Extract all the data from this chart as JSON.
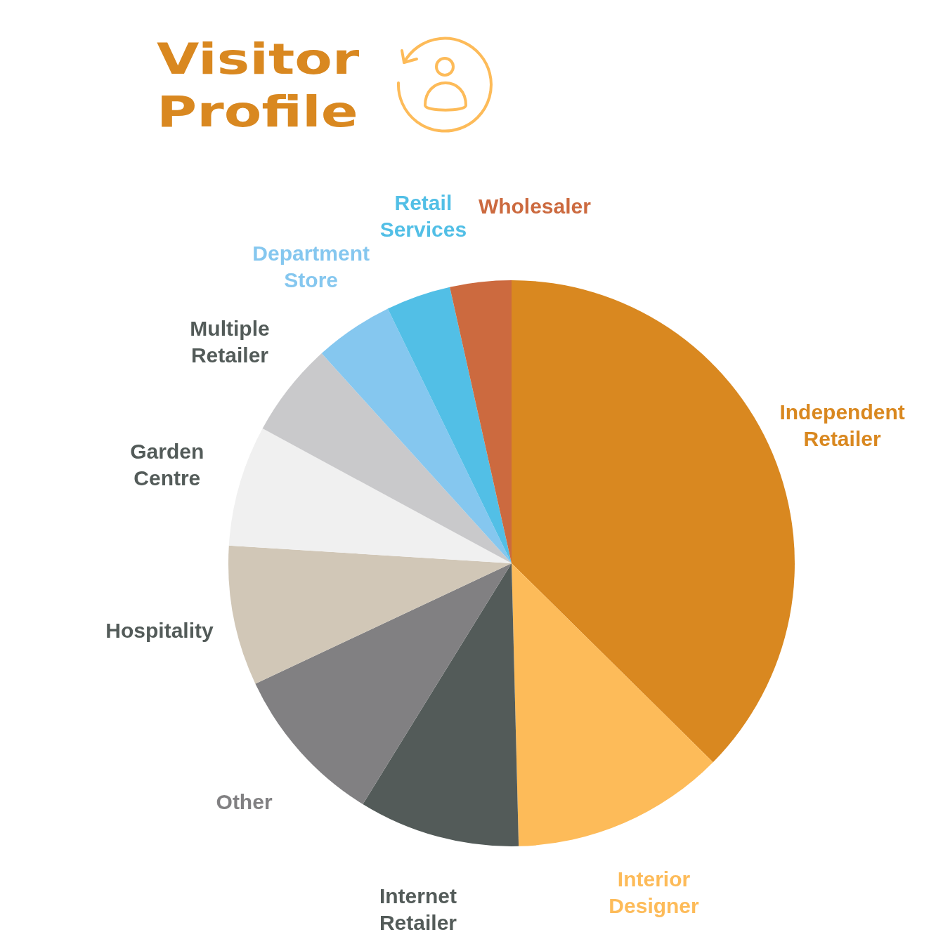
{
  "chart_data": {
    "type": "pie",
    "title": "Visitor Profile",
    "categories": [
      "Independent Retailer",
      "Interior Designer",
      "Internet Retailer",
      "Other",
      "Hospitality",
      "Garden Centre",
      "Multiple Retailer",
      "Department Store",
      "Retail Services",
      "Wholesaler"
    ],
    "values": [
      37.4,
      12.2,
      9.2,
      9.2,
      8.0,
      6.9,
      5.4,
      4.5,
      3.7,
      3.5
    ],
    "colors": [
      "#d98820",
      "#fdbb59",
      "#535b59",
      "#818082",
      "#d1c7b7",
      "#f0f0f0",
      "#c9c9cb",
      "#85c7ef",
      "#52bfe6",
      "#cc6a3f"
    ]
  }
}
